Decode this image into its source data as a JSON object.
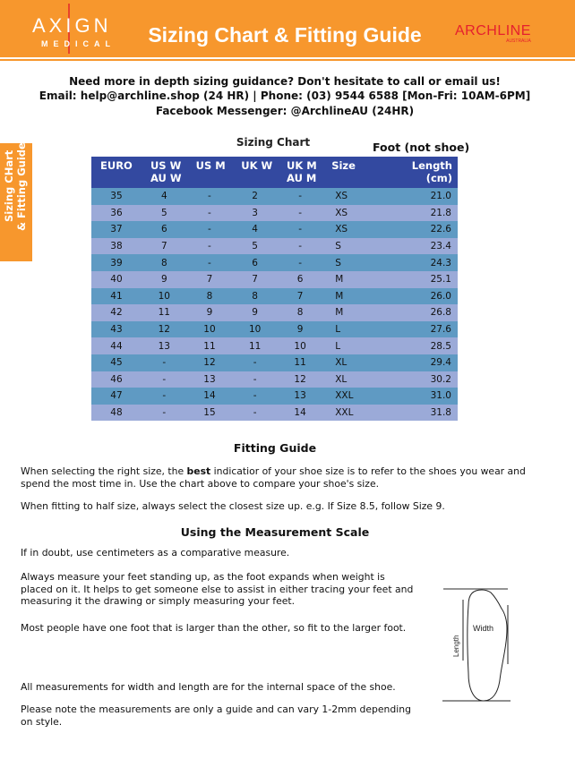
{
  "header": {
    "logo_left": {
      "name": "AXIGN",
      "sub": "MEDICAL"
    },
    "title": "Sizing Chart & Fitting Guide",
    "logo_right": {
      "name": "ARCHLINE",
      "sub": "AUSTRALIA"
    },
    "color": "#f7972d"
  },
  "contact": {
    "line1": "Need more in depth sizing guidance? Don't hesitate to call or email us!",
    "line2": "Email: help@archline.shop (24 HR) | Phone: (03) 9544 6588 [Mon-Fri: 10AM-6PM]",
    "line3": "Facebook Messenger: @ArchlineAU (24HR)"
  },
  "side_tab": {
    "line1": "Sizing CHart",
    "line2": "& Fitting Guide"
  },
  "sizing_chart": {
    "title": "Sizing Chart",
    "foot_label": "Foot (not shoe)",
    "headers": [
      [
        "EURO"
      ],
      [
        "US W",
        "AU W"
      ],
      [
        "US M"
      ],
      [
        "UK W"
      ],
      [
        "UK M",
        "AU M"
      ],
      [
        "Size"
      ],
      [
        "Length",
        "(cm)"
      ]
    ],
    "rows": [
      [
        "35",
        "4",
        "-",
        "2",
        "-",
        "XS",
        "21.0"
      ],
      [
        "36",
        "5",
        "-",
        "3",
        "-",
        "XS",
        "21.8"
      ],
      [
        "37",
        "6",
        "-",
        "4",
        "-",
        "XS",
        "22.6"
      ],
      [
        "38",
        "7",
        "-",
        "5",
        "-",
        "S",
        "23.4"
      ],
      [
        "39",
        "8",
        "-",
        "6",
        "-",
        "S",
        "24.3"
      ],
      [
        "40",
        "9",
        "7",
        "7",
        "6",
        "M",
        "25.1"
      ],
      [
        "41",
        "10",
        "8",
        "8",
        "7",
        "M",
        "26.0"
      ],
      [
        "42",
        "11",
        "9",
        "9",
        "8",
        "M",
        "26.8"
      ],
      [
        "43",
        "12",
        "10",
        "10",
        "9",
        "L",
        "27.6"
      ],
      [
        "44",
        "13",
        "11",
        "11",
        "10",
        "L",
        "28.5"
      ],
      [
        "45",
        "-",
        "12",
        "-",
        "11",
        "XL",
        "29.4"
      ],
      [
        "46",
        "-",
        "13",
        "-",
        "12",
        "XL",
        "30.2"
      ],
      [
        "47",
        "-",
        "14",
        "-",
        "13",
        "XXL",
        "31.0"
      ],
      [
        "48",
        "-",
        "15",
        "-",
        "14",
        "XXL",
        "31.8"
      ]
    ]
  },
  "fitting_guide": {
    "title": "Fitting Guide",
    "p1_before": "When selecting the right size, the ",
    "p1_bold": "best",
    "p1_after": " indicatior of your shoe size is to refer to the shoes you wear and spend the most time in. Use the chart above to compare your shoe's size.",
    "p2": "When fitting to half size, always select the closest size up. e.g. If Size 8.5, follow Size 9."
  },
  "measurement": {
    "title": "Using the Measurement Scale",
    "p1": "If in doubt, use centimeters as a comparative measure.",
    "p2": "Always measure your feet standing up, as the foot expands when weight is placed on it. It helps to get someone else to assist in either tracing your feet and measuring it the drawing or simply measuring your feet.",
    "p3": "Most people have one foot that is larger than the other, so fit to the larger foot.",
    "p4": "All measurements for width and length are for the internal space of the shoe.",
    "p5": "Please note the measurements are only a guide and can vary 1-2mm depending on style.",
    "diagram": {
      "width_label": "Width",
      "length_label": "Length"
    }
  }
}
